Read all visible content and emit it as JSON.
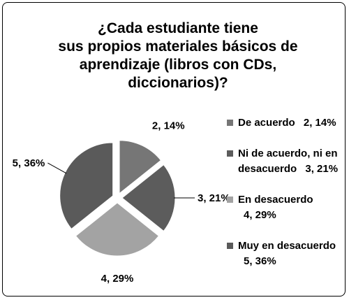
{
  "chart_data": {
    "type": "pie",
    "title": [
      "¿Cada estudiante tiene",
      "sus propios materiales básicos de",
      "aprendizaje (libros con CDs,",
      "diccionarios)?"
    ],
    "categories": [
      "De acuerdo",
      "Ni de acuerdo, ni en desacuerdo",
      "En desacuerdo",
      "Muy en desacuerdo"
    ],
    "values": [
      2,
      3,
      4,
      5
    ],
    "value_labels": [
      "2, 14%",
      "3, 21%",
      "4, 29%",
      "5, 36%"
    ],
    "colors": [
      "#767676",
      "#5c5c5c",
      "#a3a3a3",
      "#5a5a5a"
    ],
    "legend": "right"
  }
}
